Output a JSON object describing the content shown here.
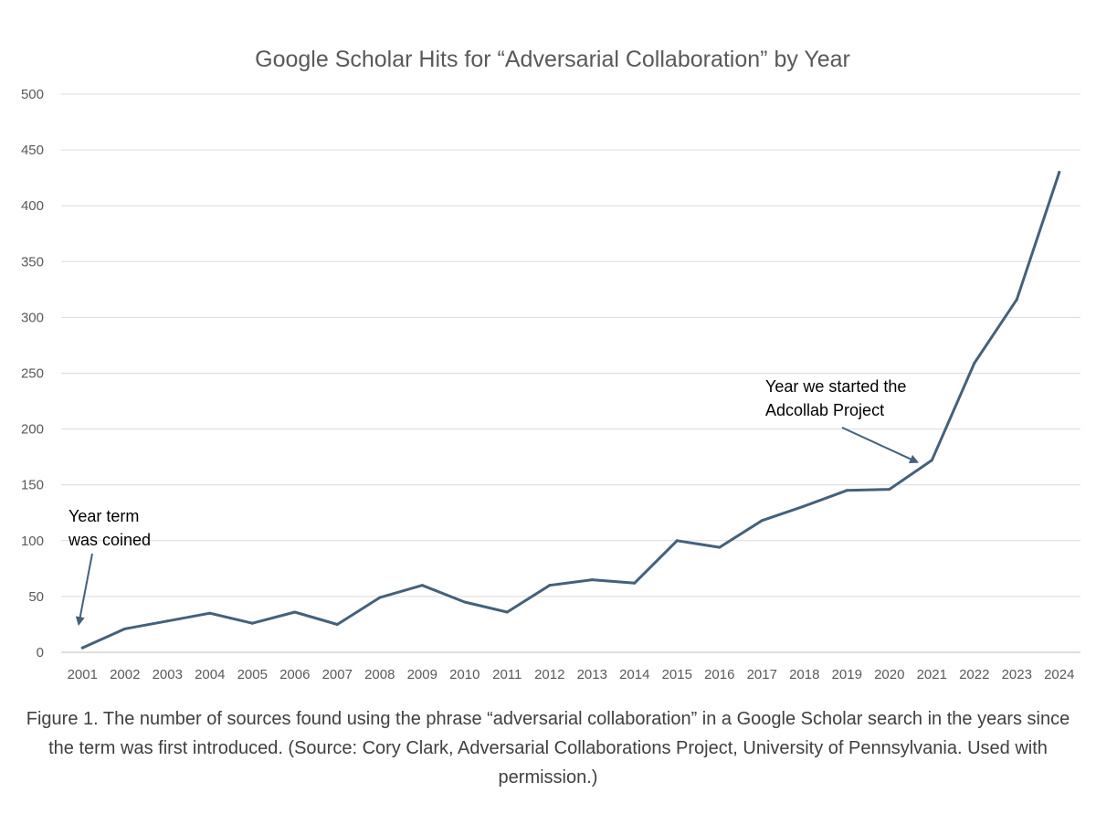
{
  "chart_data": {
    "type": "line",
    "title": "Google Scholar Hits for “Adversarial Collaboration” by Year",
    "xlabel": "",
    "ylabel": "",
    "ylim": [
      0,
      500
    ],
    "yticks": [
      "0",
      "50",
      "100",
      "150",
      "200",
      "250",
      "300",
      "350",
      "400",
      "450",
      "500"
    ],
    "grid": "horizontal",
    "line_color": "#44617b",
    "categories": [
      "2001",
      "2002",
      "2003",
      "2004",
      "2005",
      "2006",
      "2007",
      "2008",
      "2009",
      "2010",
      "2011",
      "2012",
      "2013",
      "2014",
      "2015",
      "2016",
      "2017",
      "2018",
      "2019",
      "2020",
      "2021",
      "2022",
      "2023",
      "2024"
    ],
    "series": [
      {
        "values": [
          4,
          21,
          28,
          35,
          26,
          36,
          25,
          49,
          60,
          45,
          36,
          60,
          65,
          62,
          100,
          94,
          118,
          131,
          145,
          146,
          172,
          259,
          316,
          430
        ]
      }
    ],
    "annotations": [
      {
        "id": "coined",
        "lines": [
          "Year term",
          "was coined"
        ],
        "target_category": "2001"
      },
      {
        "id": "adcollab",
        "lines": [
          "Year we started the",
          "Adcollab Project"
        ],
        "target_category": "2021"
      }
    ]
  },
  "caption": "Figure 1. The number of sources found using the phrase “adversarial collaboration” in a Google Scholar search in the years since the term was first introduced. (Source: Cory Clark, Adversarial Collaborations Project, University of Pennsylvania. Used with permission.)"
}
